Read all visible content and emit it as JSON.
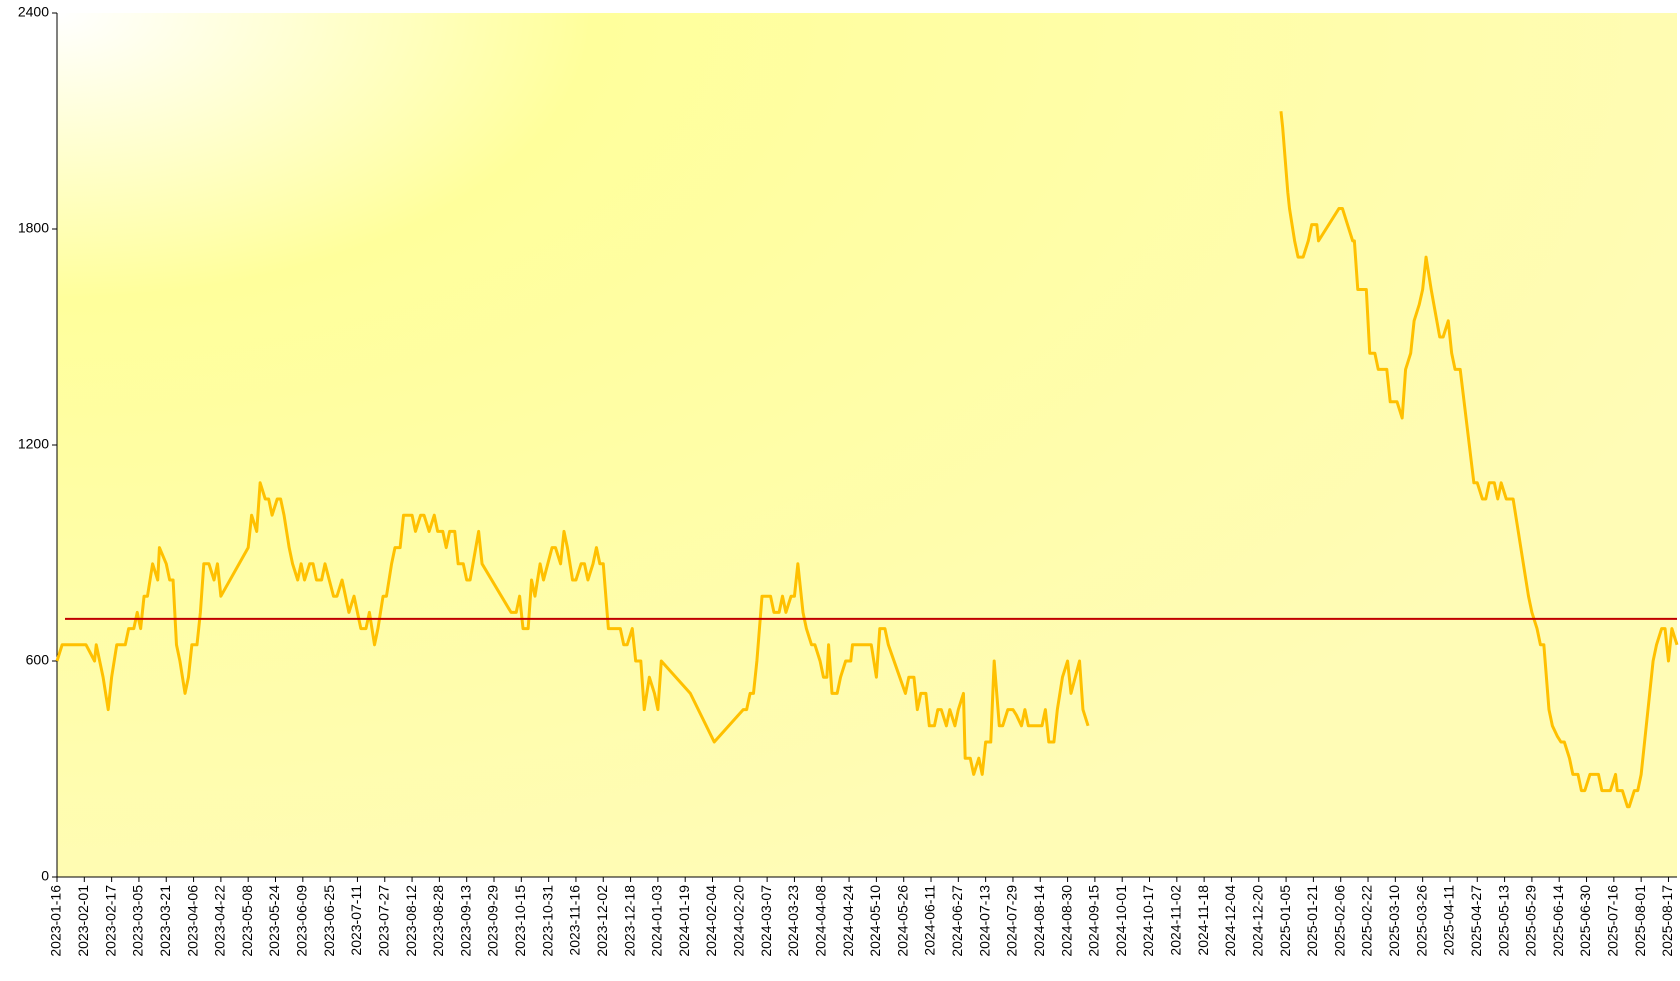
{
  "chart_data": {
    "type": "line",
    "x": [
      "2023-01-16",
      "2023-01-19",
      "2023-02-02",
      "2023-02-07",
      "2023-02-08",
      "2023-02-12",
      "2023-02-15",
      "2023-02-17",
      "2023-02-20",
      "2023-02-25",
      "2023-02-27",
      "2023-03-02",
      "2023-03-04",
      "2023-03-06",
      "2023-03-08",
      "2023-03-10",
      "2023-03-13",
      "2023-03-16",
      "2023-03-17",
      "2023-03-21",
      "2023-03-23",
      "2023-03-25",
      "2023-03-27",
      "2023-03-29",
      "2023-04-01",
      "2023-04-03",
      "2023-04-05",
      "2023-04-08",
      "2023-04-10",
      "2023-04-12",
      "2023-04-15",
      "2023-04-18",
      "2023-04-20",
      "2023-04-22",
      "2023-05-08",
      "2023-05-10",
      "2023-05-13",
      "2023-05-15",
      "2023-05-18",
      "2023-05-20",
      "2023-05-22",
      "2023-05-25",
      "2023-05-27",
      "2023-05-29",
      "2023-06-01",
      "2023-06-03",
      "2023-06-06",
      "2023-06-08",
      "2023-06-10",
      "2023-06-13",
      "2023-06-15",
      "2023-06-17",
      "2023-06-20",
      "2023-06-22",
      "2023-06-27",
      "2023-06-29",
      "2023-07-02",
      "2023-07-06",
      "2023-07-09",
      "2023-07-11",
      "2023-07-13",
      "2023-07-16",
      "2023-07-18",
      "2023-07-21",
      "2023-07-23",
      "2023-07-26",
      "2023-07-28",
      "2023-07-31",
      "2023-08-02",
      "2023-08-05",
      "2023-08-07",
      "2023-08-12",
      "2023-08-14",
      "2023-08-17",
      "2023-08-19",
      "2023-08-22",
      "2023-08-25",
      "2023-08-27",
      "2023-08-30",
      "2023-09-01",
      "2023-09-03",
      "2023-09-06",
      "2023-09-08",
      "2023-09-11",
      "2023-09-13",
      "2023-09-15",
      "2023-09-20",
      "2023-09-22",
      "2023-10-09",
      "2023-10-12",
      "2023-10-14",
      "2023-10-16",
      "2023-10-19",
      "2023-10-21",
      "2023-10-23",
      "2023-10-26",
      "2023-10-28",
      "2023-11-02",
      "2023-11-04",
      "2023-11-07",
      "2023-11-09",
      "2023-11-11",
      "2023-11-14",
      "2023-11-16",
      "2023-11-19",
      "2023-11-21",
      "2023-11-23",
      "2023-11-26",
      "2023-11-28",
      "2023-11-30",
      "2023-12-02",
      "2023-12-05",
      "2023-12-12",
      "2023-12-14",
      "2023-12-16",
      "2023-12-19",
      "2023-12-21",
      "2023-12-24",
      "2023-12-26",
      "2023-12-29",
      "2024-01-01",
      "2024-01-03",
      "2024-01-05",
      "2024-01-22",
      "2024-02-05",
      "2024-02-22",
      "2024-02-24",
      "2024-02-26",
      "2024-02-28",
      "2024-03-01",
      "2024-03-04",
      "2024-03-09",
      "2024-03-11",
      "2024-03-14",
      "2024-03-16",
      "2024-03-18",
      "2024-03-21",
      "2024-03-23",
      "2024-03-25",
      "2024-03-28",
      "2024-03-30",
      "2024-04-02",
      "2024-04-04",
      "2024-04-07",
      "2024-04-09",
      "2024-04-11",
      "2024-04-12",
      "2024-04-14",
      "2024-04-17",
      "2024-04-19",
      "2024-04-22",
      "2024-04-25",
      "2024-04-26",
      "2024-05-07",
      "2024-05-10",
      "2024-05-12",
      "2024-05-15",
      "2024-05-17",
      "2024-05-27",
      "2024-05-29",
      "2024-06-01",
      "2024-06-03",
      "2024-06-05",
      "2024-06-08",
      "2024-06-10",
      "2024-06-13",
      "2024-06-15",
      "2024-06-17",
      "2024-06-20",
      "2024-06-22",
      "2024-06-25",
      "2024-06-27",
      "2024-06-30",
      "2024-07-01",
      "2024-07-04",
      "2024-07-06",
      "2024-07-09",
      "2024-07-11",
      "2024-07-13",
      "2024-07-16",
      "2024-07-18",
      "2024-07-21",
      "2024-07-23",
      "2024-07-26",
      "2024-07-29",
      "2024-07-31",
      "2024-08-03",
      "2024-08-05",
      "2024-08-07",
      "2024-08-15",
      "2024-08-17",
      "2024-08-19",
      "2024-08-22",
      "2024-08-24",
      "2024-08-27",
      "2024-08-30",
      "2024-09-01",
      "2024-09-06",
      "2024-09-08",
      "2024-09-11",
      "2024-11-01",
      "2025-01-02",
      "2025-01-03",
      "2025-01-06",
      "2025-01-07",
      "2025-01-10",
      "2025-01-12",
      "2025-01-15",
      "2025-01-18",
      "2025-01-20",
      "2025-01-23",
      "2025-01-24",
      "2025-02-05",
      "2025-02-07",
      "2025-02-10",
      "2025-02-13",
      "2025-02-14",
      "2025-02-16",
      "2025-02-21",
      "2025-02-23",
      "2025-02-26",
      "2025-02-28",
      "2025-03-05",
      "2025-03-07",
      "2025-03-11",
      "2025-03-14",
      "2025-03-16",
      "2025-03-19",
      "2025-03-21",
      "2025-03-24",
      "2025-03-26",
      "2025-03-28",
      "2025-03-31",
      "2025-04-05",
      "2025-04-07",
      "2025-04-10",
      "2025-04-12",
      "2025-04-14",
      "2025-04-17",
      "2025-04-25",
      "2025-04-27",
      "2025-04-30",
      "2025-05-02",
      "2025-05-04",
      "2025-05-07",
      "2025-05-09",
      "2025-05-11",
      "2025-05-14",
      "2025-05-18",
      "2025-05-21",
      "2025-05-24",
      "2025-05-27",
      "2025-05-29",
      "2025-06-01",
      "2025-06-03",
      "2025-06-05",
      "2025-06-08",
      "2025-06-10",
      "2025-06-13",
      "2025-06-15",
      "2025-06-17",
      "2025-06-20",
      "2025-06-22",
      "2025-06-25",
      "2025-06-27",
      "2025-06-29",
      "2025-07-02",
      "2025-07-04",
      "2025-07-07",
      "2025-07-09",
      "2025-07-14",
      "2025-07-17",
      "2025-07-18",
      "2025-07-21",
      "2025-07-24",
      "2025-07-25",
      "2025-07-28",
      "2025-07-30",
      "2025-08-01",
      "2025-08-03",
      "2025-08-06",
      "2025-08-08",
      "2025-08-10",
      "2025-08-13",
      "2025-08-15",
      "2025-08-17",
      "2025-08-19",
      "2025-08-22"
    ],
    "series": [
      {
        "color": "#ffc000",
        "values": [
          600,
          645,
          645,
          600,
          645,
          555,
          465,
          555,
          645,
          645,
          690,
          690,
          735,
          690,
          780,
          780,
          870,
          825,
          915,
          870,
          825,
          825,
          645,
          600,
          510,
          555,
          645,
          645,
          735,
          870,
          870,
          825,
          870,
          780,
          915,
          1005,
          960,
          1095,
          1050,
          1050,
          1005,
          1050,
          1050,
          1005,
          915,
          870,
          825,
          870,
          825,
          870,
          870,
          825,
          825,
          870,
          780,
          780,
          825,
          735,
          780,
          735,
          690,
          690,
          735,
          645,
          690,
          780,
          780,
          870,
          915,
          915,
          1005,
          1005,
          960,
          1005,
          1005,
          960,
          1005,
          960,
          960,
          915,
          960,
          960,
          870,
          870,
          825,
          825,
          960,
          870,
          735,
          735,
          780,
          690,
          690,
          825,
          780,
          870,
          825,
          915,
          915,
          870,
          960,
          915,
          825,
          825,
          870,
          870,
          825,
          870,
          915,
          870,
          870,
          690,
          690,
          645,
          645,
          690,
          600,
          600,
          465,
          555,
          510,
          465,
          600,
          510,
          375,
          465,
          465,
          510,
          510,
          600,
          780,
          780,
          735,
          735,
          780,
          735,
          780,
          780,
          870,
          735,
          690,
          645,
          645,
          600,
          555,
          555,
          645,
          510,
          510,
          555,
          600,
          600,
          645,
          645,
          555,
          690,
          690,
          645,
          510,
          555,
          555,
          465,
          510,
          510,
          420,
          420,
          465,
          465,
          420,
          465,
          420,
          465,
          510,
          330,
          330,
          285,
          330,
          285,
          375,
          375,
          600,
          420,
          420,
          465,
          465,
          450,
          420,
          465,
          420,
          420,
          465,
          375,
          375,
          465,
          555,
          600,
          510,
          600,
          465,
          420,
          null,
          2127,
          2082,
          1902,
          1857,
          1767,
          1722,
          1722,
          1767,
          1812,
          1812,
          1767,
          1857,
          1857,
          1812,
          1767,
          1767,
          1632,
          1632,
          1455,
          1455,
          1410,
          1410,
          1320,
          1320,
          1275,
          1410,
          1455,
          1545,
          1590,
          1632,
          1722,
          1632,
          1500,
          1500,
          1545,
          1455,
          1410,
          1410,
          1095,
          1095,
          1050,
          1050,
          1095,
          1095,
          1050,
          1095,
          1050,
          1050,
          960,
          870,
          780,
          735,
          690,
          645,
          645,
          465,
          420,
          390,
          375,
          375,
          330,
          285,
          285,
          240,
          240,
          285,
          285,
          285,
          240,
          240,
          285,
          240,
          240,
          195,
          195,
          240,
          240,
          285,
          375,
          510,
          600,
          645,
          690,
          690,
          600,
          690,
          645
        ]
      }
    ],
    "reference_line": {
      "value": 717,
      "color": "#c00000"
    },
    "xlim": [
      "2023-01-16",
      "2025-08-22"
    ],
    "xticks": [
      "2023-01-16",
      "2023-02-01",
      "2023-02-17",
      "2023-03-05",
      "2023-03-21",
      "2023-04-06",
      "2023-04-22",
      "2023-05-08",
      "2023-05-24",
      "2023-06-09",
      "2023-06-25",
      "2023-07-11",
      "2023-07-27",
      "2023-08-12",
      "2023-08-28",
      "2023-09-13",
      "2023-09-29",
      "2023-10-15",
      "2023-10-31",
      "2023-11-16",
      "2023-12-02",
      "2023-12-18",
      "2024-01-03",
      "2024-01-19",
      "2024-02-04",
      "2024-02-20",
      "2024-03-07",
      "2024-03-23",
      "2024-04-08",
      "2024-04-24",
      "2024-05-10",
      "2024-05-26",
      "2024-06-11",
      "2024-06-27",
      "2024-07-13",
      "2024-07-29",
      "2024-08-14",
      "2024-08-30",
      "2024-09-15",
      "2024-10-01",
      "2024-10-17",
      "2024-11-02",
      "2024-11-18",
      "2024-12-04",
      "2024-12-20",
      "2025-01-05",
      "2025-01-21",
      "2025-02-06",
      "2025-02-22",
      "2025-03-10",
      "2025-03-26",
      "2025-04-11",
      "2025-04-27",
      "2025-05-13",
      "2025-05-29",
      "2025-06-14",
      "2025-06-30",
      "2025-07-16",
      "2025-08-01",
      "2025-08-17"
    ],
    "ylim": [
      0,
      2400
    ],
    "yticks": [
      0,
      600,
      1200,
      1800,
      2400
    ],
    "grid": false
  }
}
